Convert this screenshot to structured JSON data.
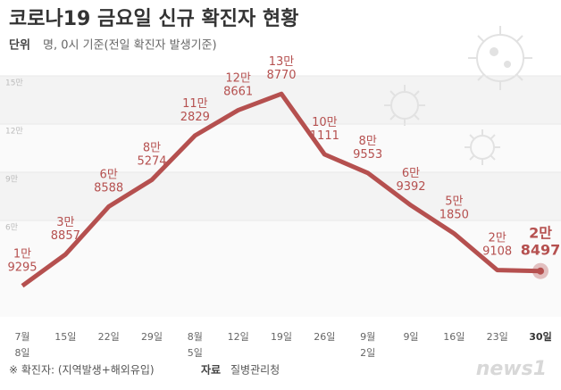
{
  "chart_data": {
    "type": "line",
    "title": "코로나19 금요일 신규 확진자 현황",
    "unit_label": "단위",
    "unit_text": "명, 0시 기준(전일 확진자 발생기준)",
    "categories": [
      "7월\n8일",
      "15일",
      "22일",
      "29일",
      "8월\n5일",
      "12일",
      "19일",
      "26일",
      "9월\n2일",
      "9일",
      "16일",
      "23일",
      "30일"
    ],
    "series": [
      {
        "name": "신규 확진자",
        "color": "#b5504f",
        "values": [
          19295,
          38857,
          68588,
          85274,
          112829,
          128661,
          138770,
          101111,
          89553,
          69392,
          51850,
          29108,
          28497
        ],
        "value_labels": [
          "1만\n9295",
          "3만\n8857",
          "6만\n8588",
          "8만\n5274",
          "11만\n2829",
          "12만\n8661",
          "13만\n8770",
          "10만\n1111",
          "8만\n9553",
          "6만\n9392",
          "5만\n1850",
          "2만\n9108",
          "2만\n8497"
        ]
      }
    ],
    "ylim": [
      0,
      150000
    ],
    "yticks": [
      {
        "value": 150000,
        "label": "15만"
      },
      {
        "value": 120000,
        "label": "12만"
      },
      {
        "value": 90000,
        "label": "9만"
      },
      {
        "value": 60000,
        "label": "6만"
      }
    ],
    "note": "※ 확진자: (지역발생+해외유입)",
    "source_label": "자료",
    "source": "질병관리청",
    "logo": "news1"
  }
}
